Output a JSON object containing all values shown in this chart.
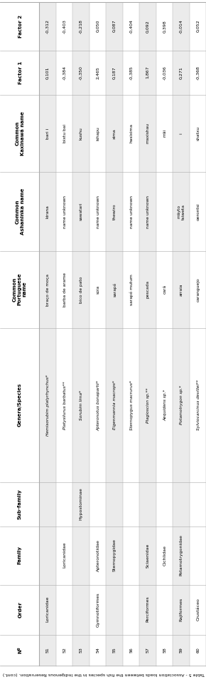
{
  "title": "Table 5 - Association loads between the fish species in the Indigenous Reservation. (cont.)",
  "col_headers": [
    "Nº",
    "Order",
    "Family",
    "Sub-family",
    "Genera/Species",
    "Common\nPortuguese\nname",
    "Common\nAshaninka name",
    "Common\nKaxinawá name",
    "Factor 1",
    "Factor 2"
  ],
  "rows": [
    [
      "51",
      "Loricanidae",
      "",
      "",
      "Hemisorubim platyrhynchus*",
      "braço de moça",
      "kirana",
      "bari i",
      "0,101",
      "-0,312"
    ],
    [
      "52",
      "",
      "Loricanidae",
      "",
      "Platysilurus barbatus**",
      "barba de arame",
      "name unknown",
      "bixtu bai",
      "-0,384",
      "-0,403"
    ],
    [
      "53",
      "",
      "",
      "Hypostominae",
      "Sorubim lima*",
      "bico de pato",
      "sawatari",
      "kushu",
      "-0,350",
      "-0,218"
    ],
    [
      "54",
      "Gymnotiformes",
      "Apteronotidae",
      "",
      "Apteronotus bonapartii*",
      "soia",
      "name unknown",
      "ishapu",
      "2,465",
      "0,050"
    ],
    [
      "55",
      "",
      "Sternopygidae",
      "",
      "Eigenmannia macrops*",
      "sarapó",
      "thewiro",
      "xima",
      "0,187",
      "0,087"
    ],
    [
      "56",
      "",
      "",
      "",
      "Sternopygus macrurus*",
      "sarapó mutum",
      "name unknown",
      "hasixima",
      "-0,385",
      "-0,404"
    ],
    [
      "57",
      "Perciformes",
      "Sciaenidae",
      "",
      "Plagioscion sp.**",
      "pescada",
      "name unknown",
      "maxishau",
      "1,867",
      "0,092"
    ],
    [
      "58",
      "",
      "Cichlidae",
      "",
      "Aequidens sp.*",
      "cará",
      "",
      "mãi",
      "-0,036",
      "0,398"
    ],
    [
      "59",
      "Rajiformes",
      "Potamotrygonidae",
      "",
      "Potamotrygon sp.*",
      "arraia",
      "mäyto\ntsiweta",
      "i",
      "0,271",
      "-0,014"
    ],
    [
      "60",
      "Crustáceo",
      "",
      "",
      "Sylviocarcinus devillei**",
      "caranguejo",
      "oerontsi",
      "shatxu",
      "-0,368",
      "0,052"
    ]
  ],
  "bg_light": "#ebebeb",
  "bg_white": "#ffffff",
  "border_color": "#aaaaaa",
  "text_color": "#000000",
  "italic_col": 4
}
